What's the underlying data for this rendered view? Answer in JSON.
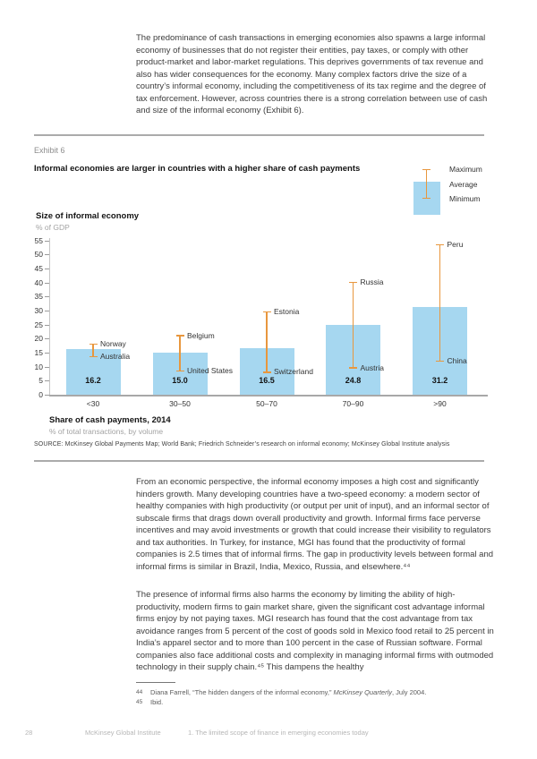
{
  "intro": {
    "text": "The predominance of cash transactions in emerging economies also spawns a large informal economy of businesses that do not register their entities, pay taxes, or comply with other product-market and labor-market regulations. This deprives governments of tax revenue and also has wider consequences for the economy. Many complex factors drive the size of a country’s informal economy, including the competitiveness of its tax regime and the degree of tax enforcement. However, across countries there is a strong correlation between use of cash and size of the informal economy (Exhibit 6)."
  },
  "exhibit": {
    "label": "Exhibit 6",
    "title": "Informal economies are larger in countries with a higher share of cash payments",
    "legend": {
      "maximum": "Maximum",
      "average": "Average",
      "minimum": "Minimum"
    },
    "y_axis_title": "Size of informal economy",
    "y_axis_subtitle": "% of GDP",
    "x_axis_title": "Share of cash payments, 2014",
    "x_axis_subtitle": "% of total transactions, by volume",
    "source": "SOURCE:  McKinsey Global Payments Map; World Bank; Friedrich Schneider’s research on informal economy; McKinsey Global Institute analysis"
  },
  "chart_data": {
    "type": "bar",
    "title": "Informal economies are larger in countries with a higher share of cash payments",
    "xlabel": "Share of cash payments, 2014 (% of total transactions, by volume)",
    "ylabel": "Size of informal economy (% of GDP)",
    "categories": [
      "<30",
      "30–50",
      "50–70",
      "70–90",
      ">90"
    ],
    "values": [
      16.2,
      15.0,
      16.5,
      24.8,
      31.2
    ],
    "value_labels": [
      "16.2",
      "15.0",
      "16.5",
      "24.8",
      "31.2"
    ],
    "error_bars": [
      {
        "min": 13.5,
        "min_label": "Australia",
        "max": 18,
        "max_label": "Norway"
      },
      {
        "min": 8.5,
        "min_label": "United States",
        "max": 21,
        "max_label": "Belgium"
      },
      {
        "min": 8,
        "min_label": "Switzerland",
        "max": 29.5,
        "max_label": "Estonia"
      },
      {
        "min": 9.5,
        "min_label": "Austria",
        "max": 40,
        "max_label": "Russia"
      },
      {
        "min": 12,
        "min_label": "China",
        "max": 53.5,
        "max_label": "Peru"
      }
    ],
    "ylim": [
      0,
      55
    ],
    "y_ticks": [
      0,
      5,
      10,
      15,
      20,
      25,
      30,
      35,
      40,
      45,
      50,
      55
    ],
    "grid": false,
    "legend_position": "top-right",
    "colors": {
      "bar": "#A6D7F0",
      "error": "#E8973E"
    }
  },
  "body": {
    "para2": "From an economic perspective, the informal economy imposes a high cost and significantly hinders growth. Many developing countries have a two-speed economy: a modern sector of healthy companies with high productivity (or output per unit of input), and an informal sector of subscale firms that drags down overall productivity and growth. Informal firms face perverse incentives and may avoid investments or growth that could increase their visibility to regulators and tax authorities. In Turkey, for instance, MGI has found that the productivity of formal companies is 2.5 times that of informal firms. The gap in productivity levels between formal and informal firms is similar in Brazil, India, Mexico, Russia, and elsewhere.⁴⁴",
    "para3": "The presence of informal firms also harms the economy by limiting the ability of high-productivity, modern firms to gain market share, given the significant cost advantage informal firms enjoy by not paying taxes. MGI research has found that the cost advantage from tax avoidance ranges from 5 percent of the cost of goods sold in Mexico food retail to 25 percent in India’s apparel sector and to more than 100 percent in the case of Russian software. Formal companies also face additional costs and complexity in managing informal firms with outmoded technology in their supply chain.⁴⁵ This dampens the healthy"
  },
  "footnotes": [
    {
      "num": "44",
      "prefix": "Diana Farrell, “The hidden dangers of the informal economy,” ",
      "italic": "McKinsey Quarterly",
      "suffix": ", July 2004."
    },
    {
      "num": "45",
      "prefix": "Ibid.",
      "italic": "",
      "suffix": ""
    }
  ],
  "footer": {
    "page_number": "28",
    "institute": "McKinsey Global Institute",
    "chapter": "1. The limited scope of finance in emerging economies today"
  }
}
